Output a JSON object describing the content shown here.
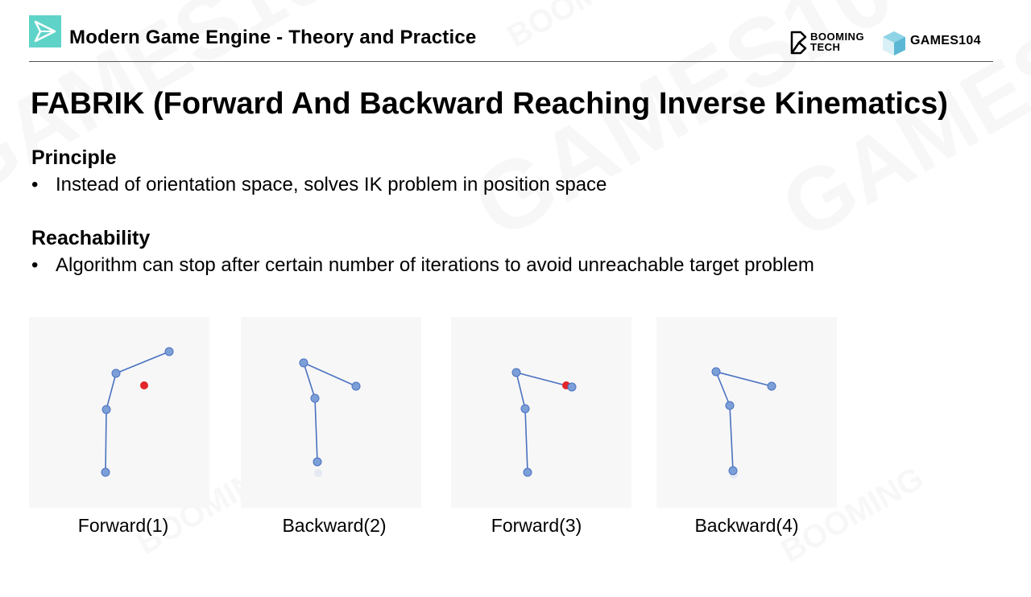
{
  "header": {
    "course_title": "Modern Game Engine - Theory and Practice",
    "brand_booming_line1": "BOOMING",
    "brand_booming_line2": "TECH",
    "brand_games": "GAMES104"
  },
  "slide": {
    "title": "FABRIK (Forward And Backward Reaching Inverse Kinematics)",
    "sections": [
      {
        "heading": "Principle",
        "bullet": "Instead of orientation space, solves IK problem in position space"
      },
      {
        "heading": "Reachability",
        "bullet": "Algorithm can stop after certain number of iterations to avoid unreachable target problem"
      }
    ],
    "bullet_symbol": "•"
  },
  "figures": [
    {
      "caption": "Forward(1)"
    },
    {
      "caption": "Backward(2)"
    },
    {
      "caption": "Forward(3)"
    },
    {
      "caption": "Backward(4)"
    }
  ],
  "colors": {
    "accent": "#5fd3c8",
    "joint": "#7c9fd8",
    "bone": "#4a72c0",
    "target": "#e3262a",
    "panel_bg": "#f7f7f7"
  }
}
